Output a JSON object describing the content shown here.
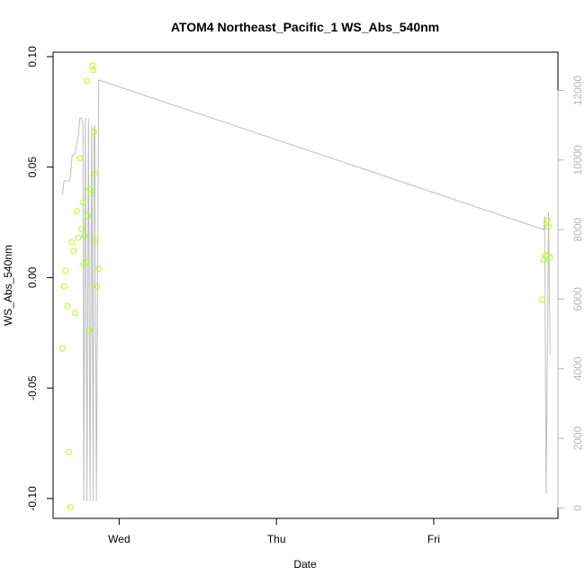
{
  "chart_data": {
    "type": "scatter",
    "title": "ATOM4 Northeast_Pacific_1 WS_Abs_540nm",
    "xlabel": "Date",
    "ylabel": "WS_Abs_540nm",
    "x_axis": {
      "type": "time",
      "range_days": [
        -0.42,
        2.79
      ],
      "ticks": [
        {
          "value": 0,
          "label": "Wed"
        },
        {
          "value": 1,
          "label": "Thu"
        },
        {
          "value": 2,
          "label": "Fri"
        }
      ]
    },
    "y_left": {
      "range": [
        -0.109,
        0.102
      ],
      "ticks": [
        {
          "value": 0.1,
          "label": "0.10"
        },
        {
          "value": 0.05,
          "label": "0.05"
        },
        {
          "value": 0.0,
          "label": "0.00"
        },
        {
          "value": -0.05,
          "label": "-0.05"
        },
        {
          "value": -0.1,
          "label": "-0.10"
        }
      ]
    },
    "y_right": {
      "range": [
        -300,
        13100
      ],
      "color": "#b8b8b8",
      "ticks": [
        {
          "value": 0,
          "label": "0"
        },
        {
          "value": 2000,
          "label": "2000"
        },
        {
          "value": 4000,
          "label": "4000"
        },
        {
          "value": 6000,
          "label": "6000"
        },
        {
          "value": 8000,
          "label": "8000"
        },
        {
          "value": 10000,
          "label": "10000"
        },
        {
          "value": 12000,
          "label": "12000"
        }
      ]
    },
    "grid": false,
    "legend": "none",
    "series": [
      {
        "type": "scatter",
        "axis": "left",
        "color": "#b3ff1a",
        "marker": "open-circle",
        "points": [
          [
            -0.36,
            -0.032
          ],
          [
            -0.35,
            -0.004
          ],
          [
            -0.34,
            0.003
          ],
          [
            -0.33,
            -0.013
          ],
          [
            -0.32,
            -0.079
          ],
          [
            -0.31,
            -0.104
          ],
          [
            -0.3,
            0.016
          ],
          [
            -0.29,
            0.012
          ],
          [
            -0.28,
            -0.016
          ],
          [
            -0.27,
            0.03
          ],
          [
            -0.26,
            0.018
          ],
          [
            -0.25,
            0.054
          ],
          [
            -0.24,
            0.022
          ],
          [
            -0.23,
            0.034
          ],
          [
            -0.225,
            0.006
          ],
          [
            -0.22,
            0.019
          ],
          [
            -0.21,
            0.007
          ],
          [
            -0.205,
            0.089
          ],
          [
            -0.2,
            0.028
          ],
          [
            -0.19,
            -0.024
          ],
          [
            -0.185,
            0.04
          ],
          [
            -0.18,
            0.038
          ],
          [
            -0.17,
            0.096
          ],
          [
            -0.165,
            0.094
          ],
          [
            -0.16,
            0.066
          ],
          [
            -0.155,
            0.047
          ],
          [
            -0.15,
            0.017
          ],
          [
            -0.14,
            -0.004
          ],
          [
            -0.13,
            0.004
          ],
          [
            2.69,
            -0.01
          ],
          [
            2.7,
            0.008
          ],
          [
            2.71,
            0.01
          ],
          [
            2.72,
            0.01
          ],
          [
            2.725,
            0.026
          ],
          [
            2.73,
            0.023
          ],
          [
            2.74,
            0.009
          ]
        ]
      },
      {
        "type": "line",
        "axis": "right",
        "color": "#bdbdbd",
        "points": [
          [
            -0.36,
            9000
          ],
          [
            -0.35,
            9400
          ],
          [
            -0.32,
            9400
          ],
          [
            -0.31,
            9500
          ],
          [
            -0.3,
            10100
          ],
          [
            -0.28,
            10200
          ],
          [
            -0.26,
            10700
          ],
          [
            -0.25,
            11200
          ],
          [
            -0.24,
            11200
          ],
          [
            -0.23,
            11000
          ],
          [
            -0.225,
            200
          ],
          [
            -0.215,
            11200
          ],
          [
            -0.205,
            200
          ],
          [
            -0.195,
            11200
          ],
          [
            -0.185,
            200
          ],
          [
            -0.175,
            11000
          ],
          [
            -0.165,
            200
          ],
          [
            -0.16,
            10800
          ],
          [
            -0.155,
            11000
          ],
          [
            -0.145,
            200
          ],
          [
            -0.13,
            12300
          ],
          [
            2.7,
            8000
          ],
          [
            2.705,
            8400
          ],
          [
            2.715,
            400
          ],
          [
            2.73,
            8500
          ],
          [
            2.74,
            4400
          ]
        ]
      }
    ]
  }
}
